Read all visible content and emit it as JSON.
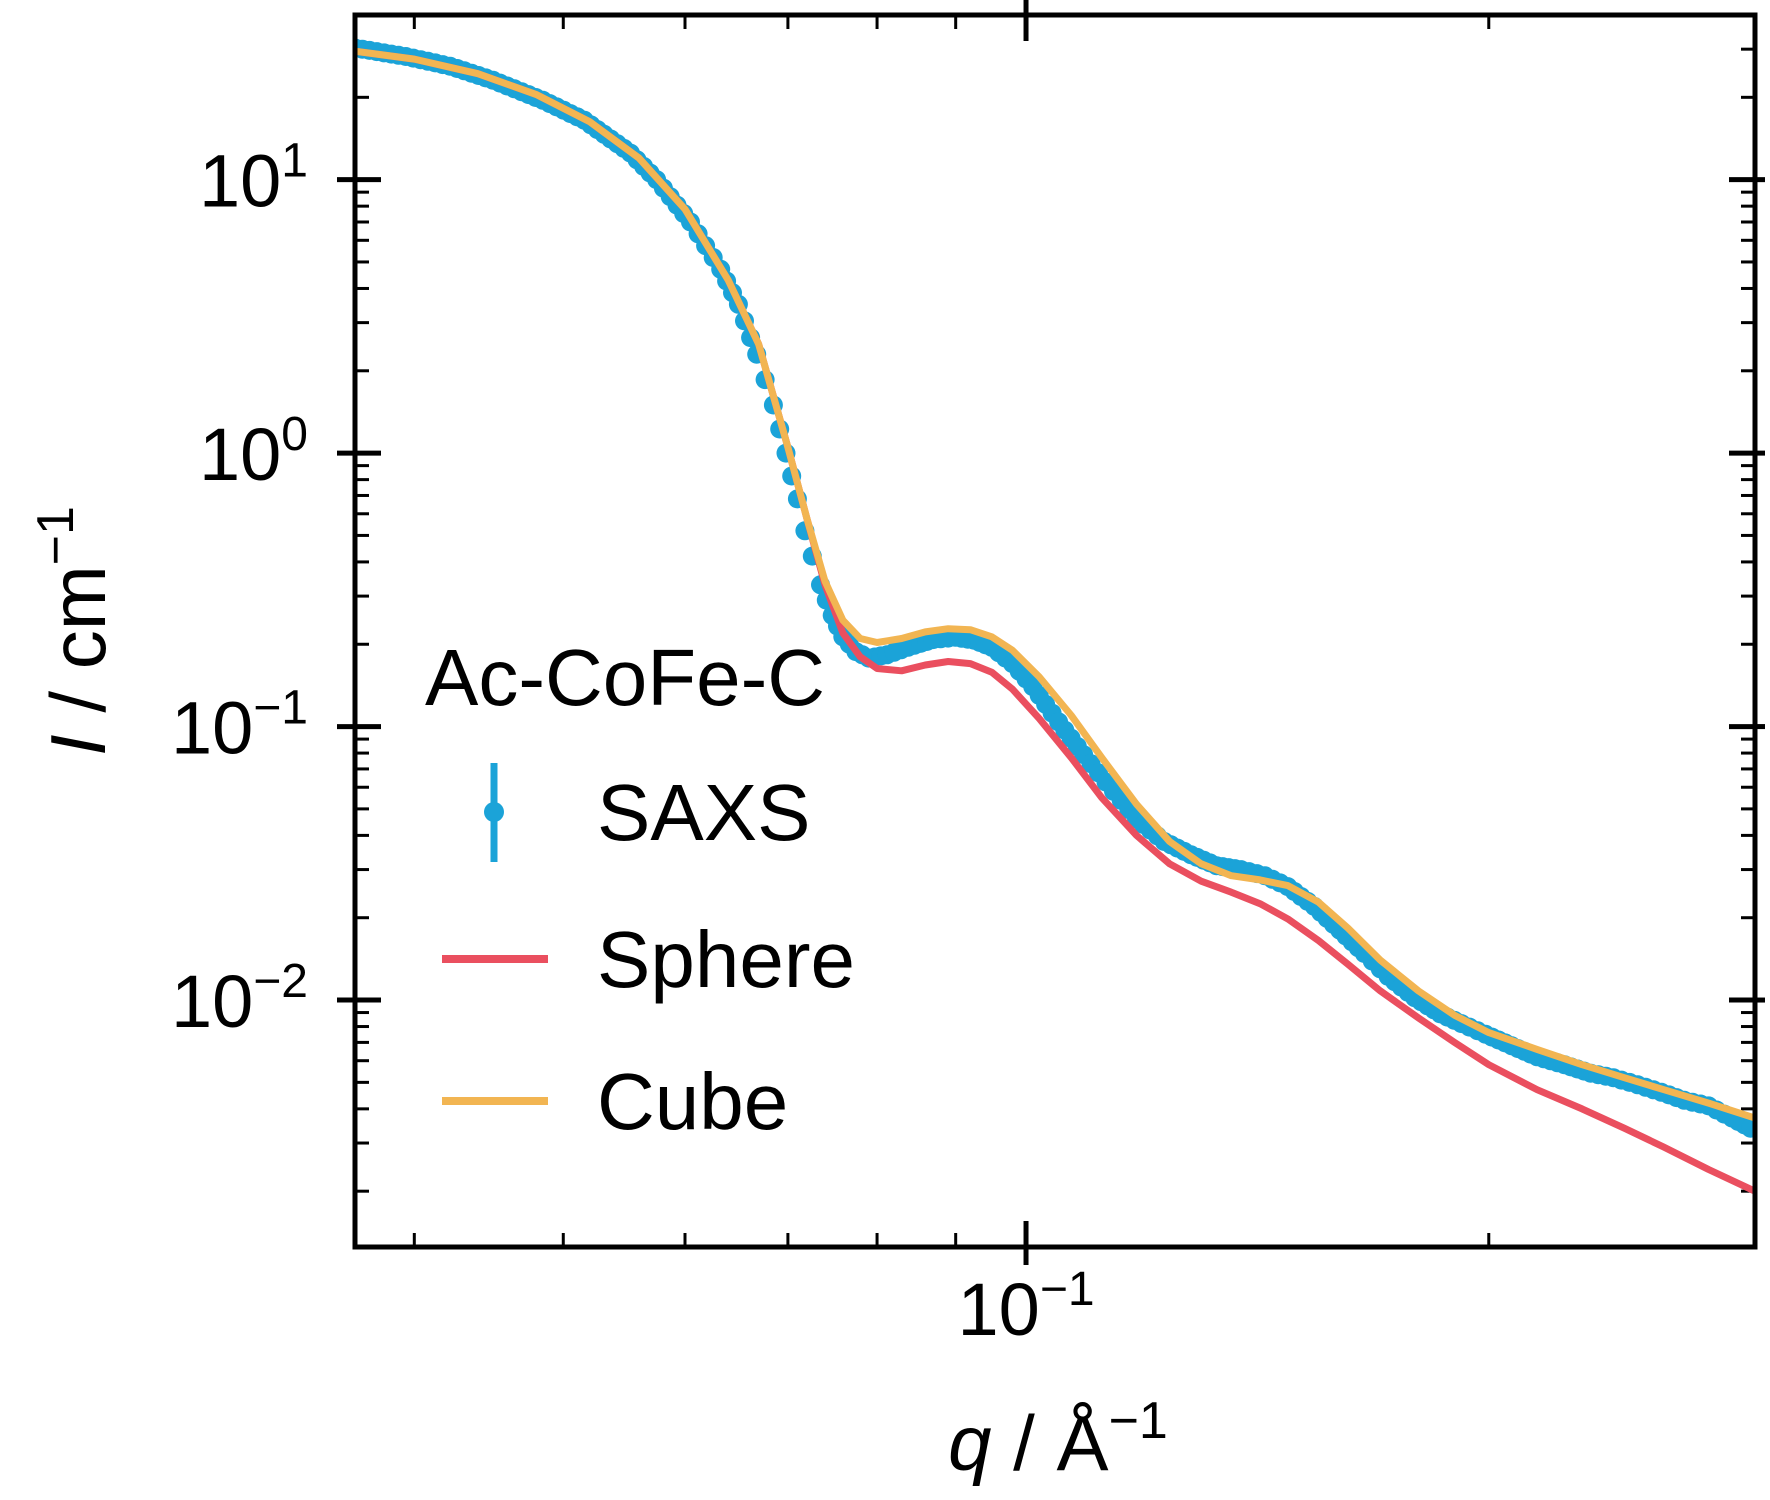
{
  "chart_data": {
    "type": "line",
    "x_scale": "log",
    "y_scale": "log",
    "xlim": [
      0.0366,
      0.298
    ],
    "ylim": [
      0.00125,
      40
    ],
    "x_axis": {
      "label_symbol": "q",
      "label_unit": "Å",
      "label_unit_exp": "−1",
      "ticks": [
        {
          "value": 0.1,
          "base": "10",
          "exp": "−1"
        }
      ]
    },
    "y_axis": {
      "label_symbol": "I",
      "label_unit": "cm",
      "label_unit_exp": "−1",
      "ticks": [
        {
          "value": 10,
          "base": "10",
          "exp": "1"
        },
        {
          "value": 1,
          "base": "10",
          "exp": "0"
        },
        {
          "value": 0.1,
          "base": "10",
          "exp": "−1"
        },
        {
          "value": 0.01,
          "base": "10",
          "exp": "−2"
        }
      ]
    },
    "legend": {
      "title": "Ac-CoFe-C",
      "placement": "center-left",
      "entries": [
        "SAXS",
        "Sphere",
        "Cube"
      ]
    },
    "grid": false,
    "colors": {
      "saxs": "#1ba3d8",
      "sphere": "#ea4f5f",
      "cube": "#f2b552"
    },
    "series": [
      {
        "name": "SAXS",
        "style": "markers-errorbars",
        "color": "#1ba3d8",
        "points": [
          [
            0.0366,
            30.3
          ],
          [
            0.0395,
            28.2
          ],
          [
            0.0422,
            26.0
          ],
          [
            0.045,
            23.1
          ],
          [
            0.0485,
            19.5
          ],
          [
            0.0516,
            16.5
          ],
          [
            0.0553,
            12.5
          ],
          [
            0.0575,
            10.0
          ],
          [
            0.0605,
            7.0
          ],
          [
            0.0633,
            4.7
          ],
          [
            0.065,
            3.5
          ],
          [
            0.0668,
            2.3
          ],
          [
            0.0685,
            1.5
          ],
          [
            0.0698,
            1.0
          ],
          [
            0.071,
            0.68
          ],
          [
            0.0718,
            0.52
          ],
          [
            0.0726,
            0.42
          ],
          [
            0.0735,
            0.33
          ],
          [
            0.0748,
            0.255
          ],
          [
            0.076,
            0.213
          ],
          [
            0.0775,
            0.188
          ],
          [
            0.079,
            0.178
          ],
          [
            0.0812,
            0.183
          ],
          [
            0.0838,
            0.195
          ],
          [
            0.087,
            0.208
          ],
          [
            0.09,
            0.212
          ],
          [
            0.0925,
            0.207
          ],
          [
            0.095,
            0.195
          ],
          [
            0.098,
            0.17
          ],
          [
            0.101,
            0.14
          ],
          [
            0.105,
            0.104
          ],
          [
            0.109,
            0.079
          ],
          [
            0.114,
            0.058
          ],
          [
            0.118,
            0.046
          ],
          [
            0.123,
            0.038
          ],
          [
            0.128,
            0.034
          ],
          [
            0.133,
            0.031
          ],
          [
            0.138,
            0.03
          ],
          [
            0.143,
            0.0285
          ],
          [
            0.148,
            0.026
          ],
          [
            0.154,
            0.022
          ],
          [
            0.16,
            0.018
          ],
          [
            0.166,
            0.0148
          ],
          [
            0.172,
            0.0122
          ],
          [
            0.179,
            0.0102
          ],
          [
            0.186,
            0.0089
          ],
          [
            0.192,
            0.0082
          ],
          [
            0.199,
            0.0075
          ],
          [
            0.207,
            0.0068
          ],
          [
            0.215,
            0.0062
          ],
          [
            0.224,
            0.0058
          ],
          [
            0.233,
            0.0054
          ],
          [
            0.241,
            0.0052
          ],
          [
            0.25,
            0.0049
          ],
          [
            0.259,
            0.0046
          ],
          [
            0.268,
            0.0043
          ],
          [
            0.278,
            0.0041
          ],
          [
            0.288,
            0.0037
          ],
          [
            0.296,
            0.0034
          ]
        ]
      },
      {
        "name": "Sphere",
        "style": "line",
        "color": "#ea4f5f",
        "points": [
          [
            0.0366,
            29.5
          ],
          [
            0.04,
            27.6
          ],
          [
            0.044,
            24.4
          ],
          [
            0.048,
            20.5
          ],
          [
            0.052,
            16.3
          ],
          [
            0.056,
            12.0
          ],
          [
            0.06,
            7.8
          ],
          [
            0.064,
            4.3
          ],
          [
            0.067,
            2.5
          ],
          [
            0.07,
            1.05
          ],
          [
            0.072,
            0.58
          ],
          [
            0.074,
            0.33
          ],
          [
            0.076,
            0.22
          ],
          [
            0.078,
            0.18
          ],
          [
            0.08,
            0.163
          ],
          [
            0.083,
            0.16
          ],
          [
            0.086,
            0.168
          ],
          [
            0.089,
            0.173
          ],
          [
            0.092,
            0.17
          ],
          [
            0.095,
            0.158
          ],
          [
            0.098,
            0.137
          ],
          [
            0.102,
            0.107
          ],
          [
            0.107,
            0.077
          ],
          [
            0.112,
            0.055
          ],
          [
            0.118,
            0.04
          ],
          [
            0.124,
            0.0315
          ],
          [
            0.13,
            0.0272
          ],
          [
            0.136,
            0.0248
          ],
          [
            0.142,
            0.0225
          ],
          [
            0.148,
            0.0198
          ],
          [
            0.155,
            0.0165
          ],
          [
            0.162,
            0.0135
          ],
          [
            0.17,
            0.0108
          ],
          [
            0.18,
            0.0086
          ],
          [
            0.19,
            0.007
          ],
          [
            0.2,
            0.0058
          ],
          [
            0.215,
            0.0047
          ],
          [
            0.23,
            0.004
          ],
          [
            0.245,
            0.0034
          ],
          [
            0.26,
            0.0029
          ],
          [
            0.278,
            0.0024
          ],
          [
            0.298,
            0.002
          ]
        ]
      },
      {
        "name": "Cube",
        "style": "line",
        "color": "#f2b552",
        "points": [
          [
            0.0366,
            29.5
          ],
          [
            0.04,
            27.6
          ],
          [
            0.044,
            24.4
          ],
          [
            0.048,
            20.5
          ],
          [
            0.052,
            16.3
          ],
          [
            0.056,
            12.0
          ],
          [
            0.06,
            7.8
          ],
          [
            0.064,
            4.3
          ],
          [
            0.067,
            2.5
          ],
          [
            0.07,
            1.05
          ],
          [
            0.072,
            0.58
          ],
          [
            0.074,
            0.34
          ],
          [
            0.076,
            0.245
          ],
          [
            0.078,
            0.21
          ],
          [
            0.08,
            0.203
          ],
          [
            0.083,
            0.21
          ],
          [
            0.086,
            0.222
          ],
          [
            0.089,
            0.228
          ],
          [
            0.092,
            0.226
          ],
          [
            0.095,
            0.213
          ],
          [
            0.098,
            0.19
          ],
          [
            0.102,
            0.152
          ],
          [
            0.107,
            0.11
          ],
          [
            0.112,
            0.077
          ],
          [
            0.118,
            0.052
          ],
          [
            0.124,
            0.038
          ],
          [
            0.13,
            0.0315
          ],
          [
            0.136,
            0.0285
          ],
          [
            0.142,
            0.0275
          ],
          [
            0.148,
            0.0262
          ],
          [
            0.155,
            0.0228
          ],
          [
            0.162,
            0.0183
          ],
          [
            0.17,
            0.014
          ],
          [
            0.18,
            0.0108
          ],
          [
            0.19,
            0.0088
          ],
          [
            0.2,
            0.0076
          ],
          [
            0.215,
            0.0066
          ],
          [
            0.23,
            0.0058
          ],
          [
            0.245,
            0.0052
          ],
          [
            0.26,
            0.0047
          ],
          [
            0.278,
            0.0042
          ],
          [
            0.298,
            0.0037
          ]
        ]
      }
    ]
  }
}
